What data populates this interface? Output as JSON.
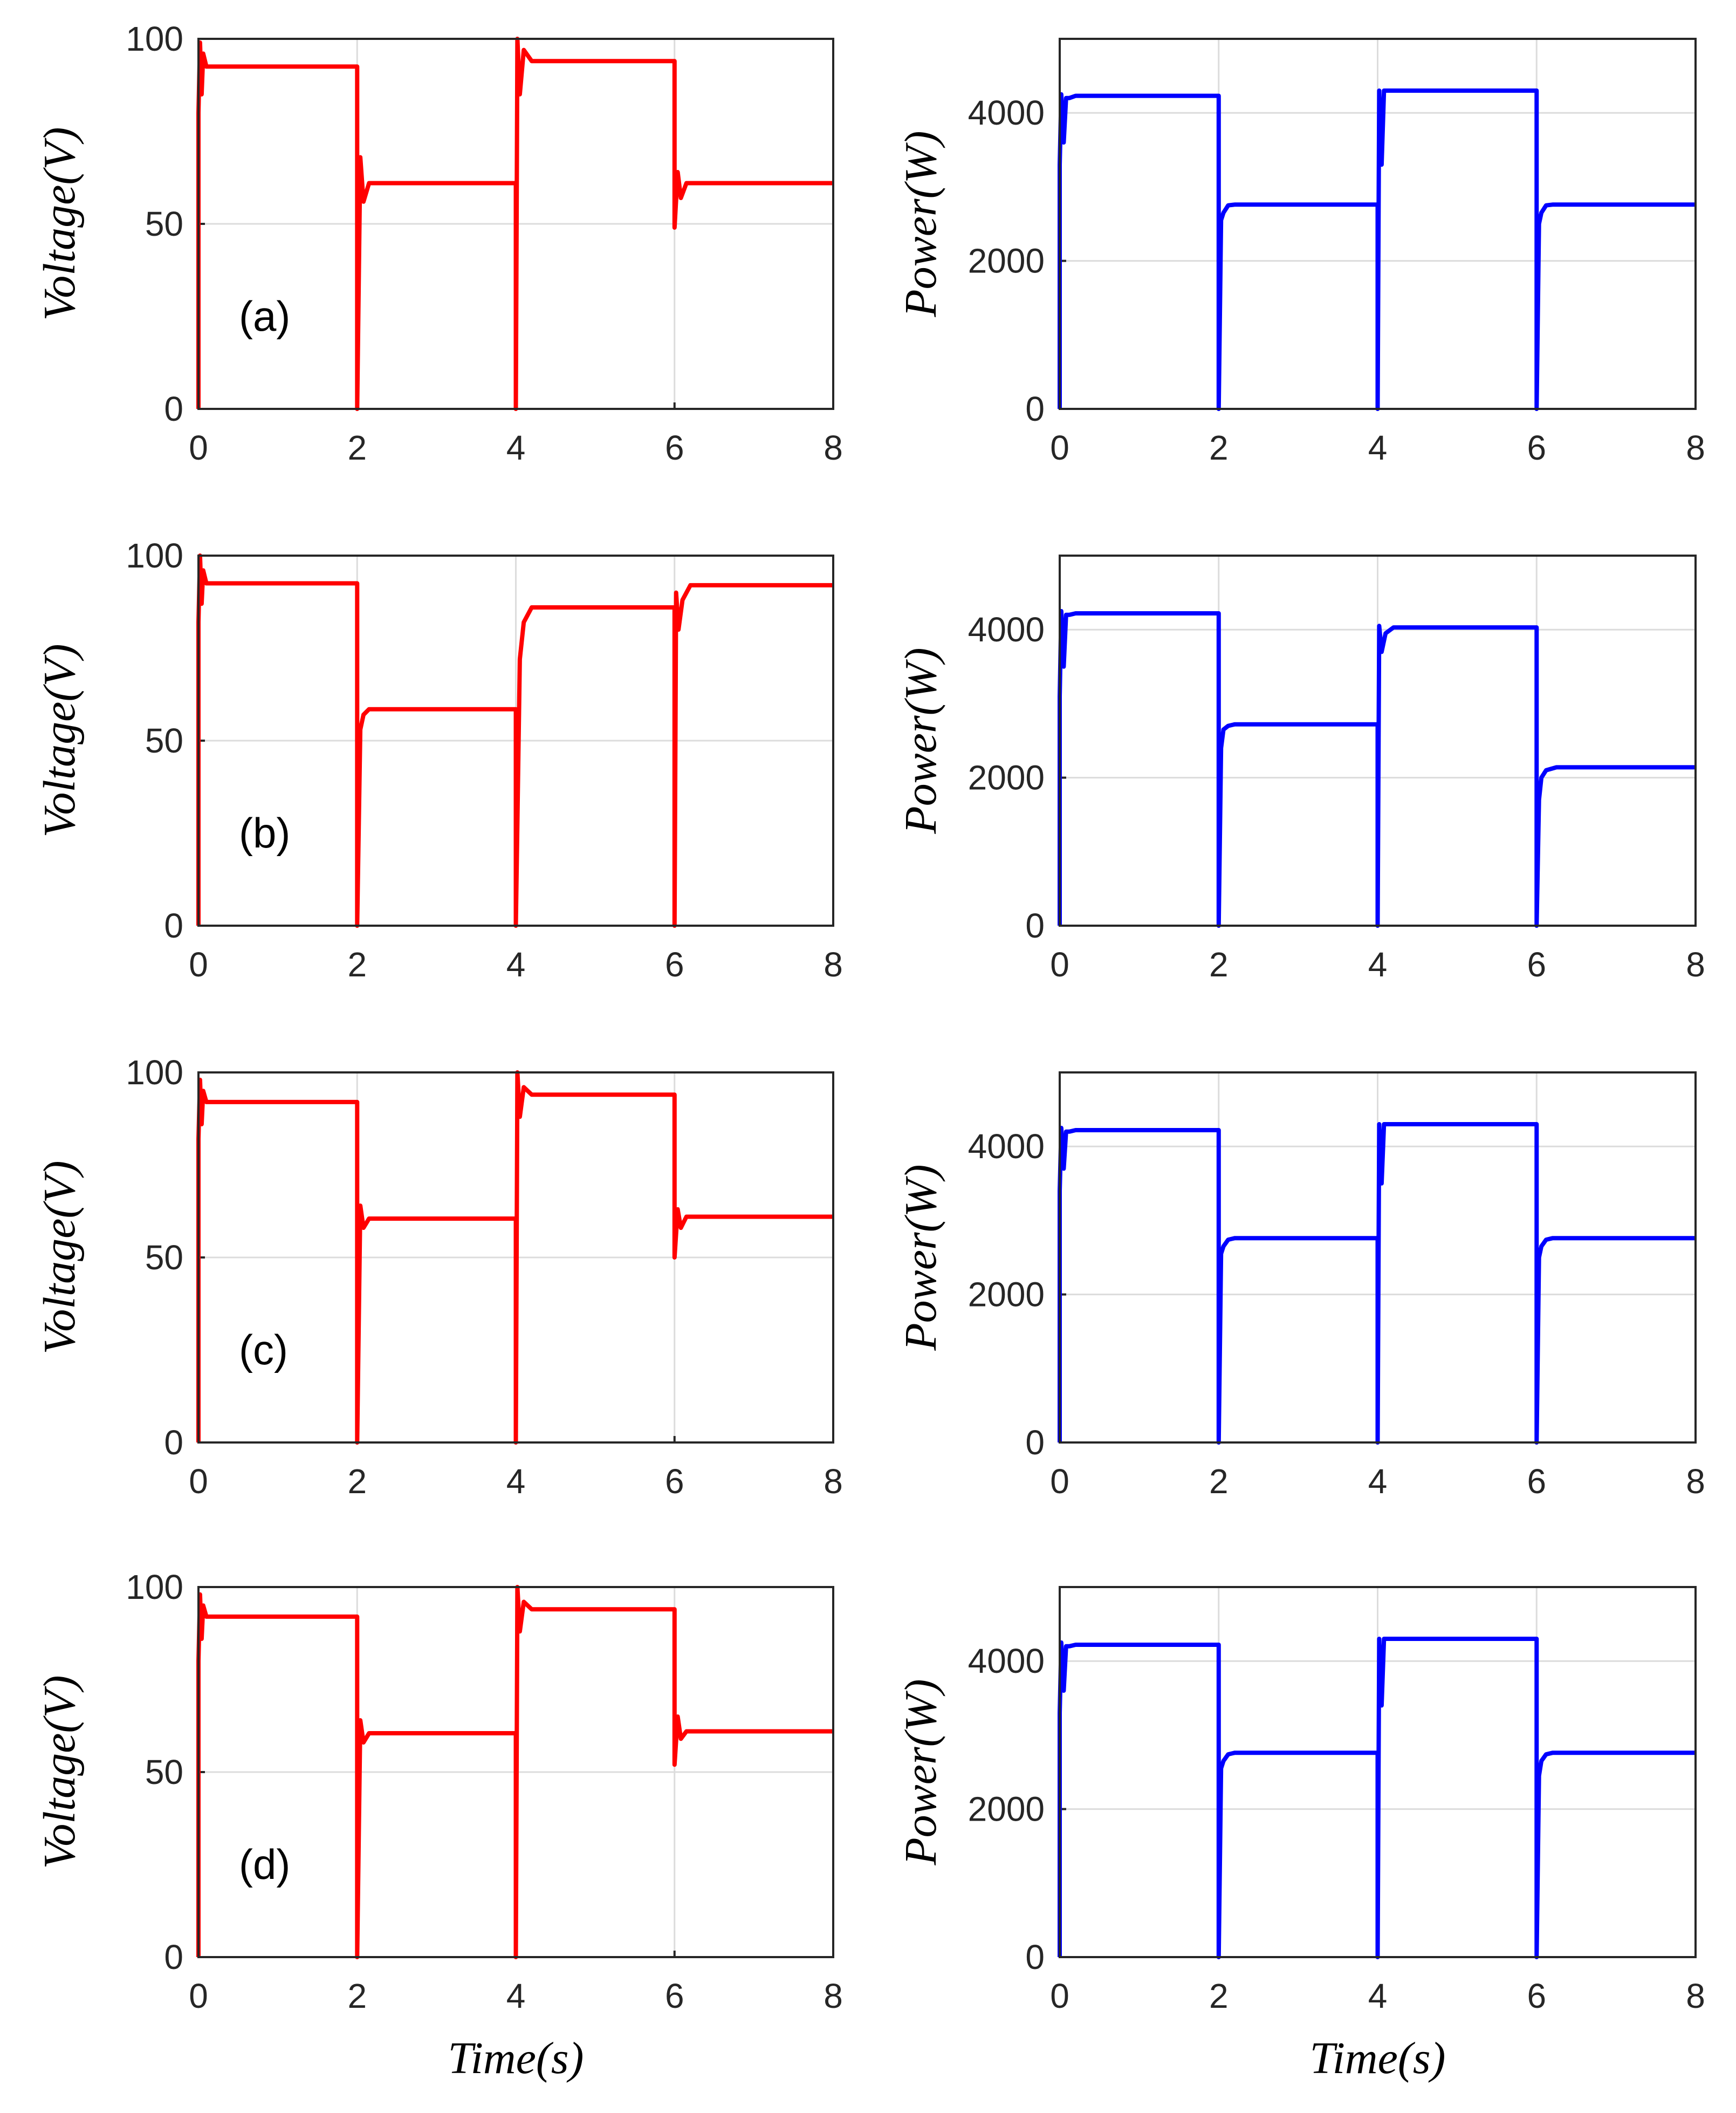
{
  "chart_data": [
    {
      "type": "line",
      "panel": "(a)",
      "ylabel": "Voltage(V)",
      "xlabel": "",
      "color": "#ff0000",
      "xlim": [
        0,
        8
      ],
      "ylim": [
        0,
        100
      ],
      "xticks": [
        "0",
        "2",
        "4",
        "6",
        "8"
      ],
      "yticks": [
        "0",
        "50",
        "100"
      ],
      "series": [
        {
          "name": "Voltage",
          "x": [
            0,
            0,
            0.02,
            0.04,
            0.06,
            0.1,
            0.2,
            2,
            2,
            2.04,
            2.08,
            2.15,
            4,
            4,
            4.02,
            4.05,
            4.1,
            4.2,
            6,
            6,
            6.04,
            6.08,
            6.15,
            8
          ],
          "y": [
            0,
            80,
            99,
            85,
            96,
            92.5,
            92.5,
            92.5,
            0,
            68,
            56,
            61,
            61,
            0,
            100,
            85,
            97,
            94,
            94,
            49,
            64,
            57,
            61,
            61
          ]
        }
      ]
    },
    {
      "type": "line",
      "panel": "",
      "ylabel": "Power(W)",
      "xlabel": "",
      "color": "#0000ff",
      "xlim": [
        0,
        8
      ],
      "ylim": [
        0,
        5000
      ],
      "xticks": [
        "0",
        "2",
        "4",
        "6",
        "8"
      ],
      "yticks": [
        "0",
        "2000",
        "4000"
      ],
      "series": [
        {
          "name": "Power",
          "x": [
            0,
            0,
            0.02,
            0.05,
            0.08,
            0.12,
            0.2,
            2,
            2,
            2.03,
            2.06,
            2.12,
            2.2,
            4,
            4,
            4.02,
            4.05,
            4.08,
            4.15,
            6,
            6,
            6.03,
            6.06,
            6.12,
            6.2,
            8
          ],
          "y": [
            0,
            3300,
            4250,
            3600,
            4200,
            4200,
            4230,
            4230,
            0,
            2550,
            2650,
            2750,
            2760,
            2760,
            0,
            4300,
            3300,
            4300,
            4300,
            4300,
            0,
            2500,
            2650,
            2750,
            2760,
            2760
          ]
        }
      ]
    },
    {
      "type": "line",
      "panel": "(b)",
      "ylabel": "Voltage(V)",
      "xlabel": "",
      "color": "#ff0000",
      "xlim": [
        0,
        8
      ],
      "ylim": [
        0,
        100
      ],
      "xticks": [
        "0",
        "2",
        "4",
        "6",
        "8"
      ],
      "yticks": [
        "0",
        "50",
        "100"
      ],
      "series": [
        {
          "name": "Voltage",
          "x": [
            0,
            0,
            0.02,
            0.04,
            0.06,
            0.1,
            0.2,
            2,
            2,
            2.04,
            2.08,
            2.15,
            4,
            4,
            4.05,
            4.1,
            4.2,
            4.3,
            6,
            6,
            6.02,
            6.05,
            6.1,
            6.2,
            8
          ],
          "y": [
            0,
            82,
            100,
            87,
            96,
            92.5,
            92.5,
            92.5,
            0,
            53,
            57,
            58.5,
            58.5,
            0,
            72,
            82,
            86,
            86,
            86,
            0,
            90,
            80,
            88,
            92,
            92
          ]
        }
      ]
    },
    {
      "type": "line",
      "panel": "",
      "ylabel": "Power(W)",
      "xlabel": "",
      "color": "#0000ff",
      "xlim": [
        0,
        8
      ],
      "ylim": [
        0,
        5000
      ],
      "xticks": [
        "0",
        "2",
        "4",
        "6",
        "8"
      ],
      "yticks": [
        "0",
        "2000",
        "4000"
      ],
      "series": [
        {
          "name": "Power",
          "x": [
            0,
            0,
            0.02,
            0.05,
            0.08,
            0.12,
            0.2,
            2,
            2,
            2.03,
            2.06,
            2.12,
            2.2,
            4,
            4,
            4.02,
            4.05,
            4.1,
            4.2,
            6,
            6,
            6.03,
            6.06,
            6.12,
            6.25,
            8
          ],
          "y": [
            0,
            3100,
            4250,
            3500,
            4200,
            4200,
            4220,
            4220,
            0,
            2400,
            2650,
            2700,
            2720,
            2720,
            0,
            4050,
            3700,
            3950,
            4030,
            4030,
            0,
            1700,
            2000,
            2100,
            2140,
            2140
          ]
        }
      ]
    },
    {
      "type": "line",
      "panel": "(c)",
      "ylabel": "Voltage(V)",
      "xlabel": "",
      "color": "#ff0000",
      "xlim": [
        0,
        8
      ],
      "ylim": [
        0,
        100
      ],
      "xticks": [
        "0",
        "2",
        "4",
        "6",
        "8"
      ],
      "yticks": [
        "0",
        "50",
        "100"
      ],
      "series": [
        {
          "name": "Voltage",
          "x": [
            0,
            0,
            0.02,
            0.04,
            0.06,
            0.1,
            0.2,
            2,
            2,
            2.04,
            2.08,
            2.15,
            4,
            4,
            4.02,
            4.05,
            4.1,
            4.2,
            6,
            6,
            6.04,
            6.08,
            6.15,
            8
          ],
          "y": [
            0,
            82,
            98,
            86,
            95,
            92,
            92,
            92,
            0,
            64,
            58,
            60.5,
            60.5,
            0,
            100,
            88,
            96,
            94,
            94,
            50,
            63,
            58,
            61,
            61
          ]
        }
      ]
    },
    {
      "type": "line",
      "panel": "",
      "ylabel": "Power(W)",
      "xlabel": "",
      "color": "#0000ff",
      "xlim": [
        0,
        8
      ],
      "ylim": [
        0,
        5000
      ],
      "xticks": [
        "0",
        "2",
        "4",
        "6",
        "8"
      ],
      "yticks": [
        "0",
        "2000",
        "4000"
      ],
      "series": [
        {
          "name": "Power",
          "x": [
            0,
            0,
            0.02,
            0.05,
            0.08,
            0.12,
            0.2,
            2,
            2,
            2.03,
            2.06,
            2.12,
            2.2,
            4,
            4,
            4.02,
            4.05,
            4.08,
            4.15,
            6,
            6,
            6.03,
            6.06,
            6.12,
            6.2,
            8
          ],
          "y": [
            0,
            3400,
            4250,
            3700,
            4200,
            4200,
            4220,
            4220,
            0,
            2550,
            2650,
            2740,
            2760,
            2760,
            0,
            4300,
            3500,
            4300,
            4300,
            4300,
            0,
            2500,
            2650,
            2740,
            2760,
            2760
          ]
        }
      ]
    },
    {
      "type": "line",
      "panel": "(d)",
      "ylabel": "Voltage(V)",
      "xlabel": "Time(s)",
      "color": "#ff0000",
      "xlim": [
        0,
        8
      ],
      "ylim": [
        0,
        100
      ],
      "xticks": [
        "0",
        "2",
        "4",
        "6",
        "8"
      ],
      "yticks": [
        "0",
        "50",
        "100"
      ],
      "series": [
        {
          "name": "Voltage",
          "x": [
            0,
            0,
            0.02,
            0.04,
            0.06,
            0.1,
            0.2,
            2,
            2,
            2.04,
            2.08,
            2.15,
            4,
            4,
            4.02,
            4.05,
            4.1,
            4.2,
            6,
            6,
            6.04,
            6.08,
            6.15,
            8
          ],
          "y": [
            0,
            80,
            98,
            86,
            95,
            92,
            92,
            92,
            0,
            64,
            58,
            60.5,
            60.5,
            0,
            100,
            88,
            96,
            94,
            94,
            52,
            65,
            59,
            61,
            61
          ]
        }
      ]
    },
    {
      "type": "line",
      "panel": "",
      "ylabel": "Power(W)",
      "xlabel": "Time(s)",
      "color": "#0000ff",
      "xlim": [
        0,
        8
      ],
      "ylim": [
        0,
        5000
      ],
      "xticks": [
        "0",
        "2",
        "4",
        "6",
        "8"
      ],
      "yticks": [
        "0",
        "2000",
        "4000"
      ],
      "series": [
        {
          "name": "Power",
          "x": [
            0,
            0,
            0.02,
            0.05,
            0.08,
            0.12,
            0.2,
            2,
            2,
            2.03,
            2.06,
            2.12,
            2.2,
            4,
            4,
            4.02,
            4.05,
            4.08,
            4.15,
            6,
            6,
            6.03,
            6.06,
            6.12,
            6.2,
            8
          ],
          "y": [
            0,
            3300,
            4250,
            3600,
            4200,
            4200,
            4220,
            4220,
            0,
            2550,
            2650,
            2740,
            2760,
            2760,
            0,
            4300,
            3400,
            4300,
            4300,
            4300,
            0,
            2450,
            2650,
            2740,
            2760,
            2760
          ]
        }
      ]
    }
  ]
}
